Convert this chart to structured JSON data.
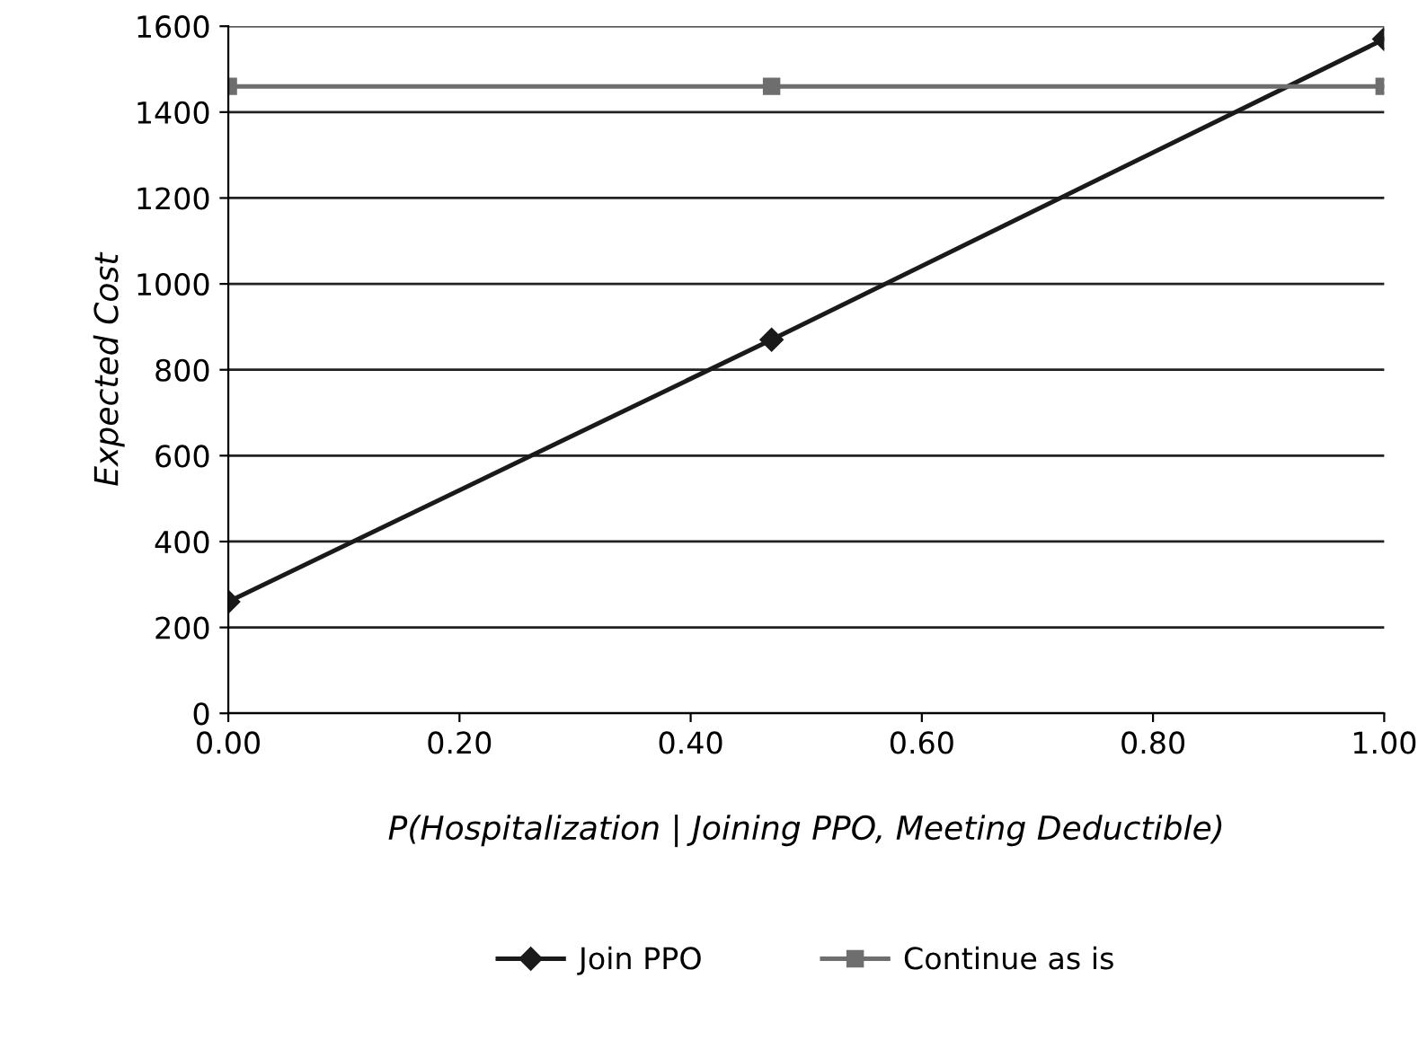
{
  "chart_data": {
    "type": "line",
    "xlabel": "P(Hospitalization | Joining PPO, Meeting Deductible)",
    "ylabel": "Expected Cost",
    "x": [
      0.0,
      0.47,
      1.0
    ],
    "series": [
      {
        "name": "Join PPO",
        "color": "#1a1a1a",
        "values": [
          260,
          870,
          1570
        ],
        "marker": "diamond"
      },
      {
        "name": "Continue as is",
        "color": "#6e6e6e",
        "values": [
          1460,
          1460,
          1460
        ],
        "marker": "square"
      }
    ],
    "xlim": [
      0,
      1
    ],
    "xticks": [
      {
        "value": 0,
        "label": "0.00"
      },
      {
        "value": 0.2,
        "label": "0.20"
      },
      {
        "value": 0.4,
        "label": "0.40"
      },
      {
        "value": 0.6,
        "label": "0.60"
      },
      {
        "value": 0.8,
        "label": "0.80"
      },
      {
        "value": 1.0,
        "label": "1.00"
      }
    ],
    "ylim": [
      0,
      1600
    ],
    "yticks": [
      0,
      200,
      400,
      600,
      800,
      1000,
      1200,
      1400,
      1600
    ],
    "grid": "y",
    "legend": "bottom",
    "line_style": "solid"
  }
}
